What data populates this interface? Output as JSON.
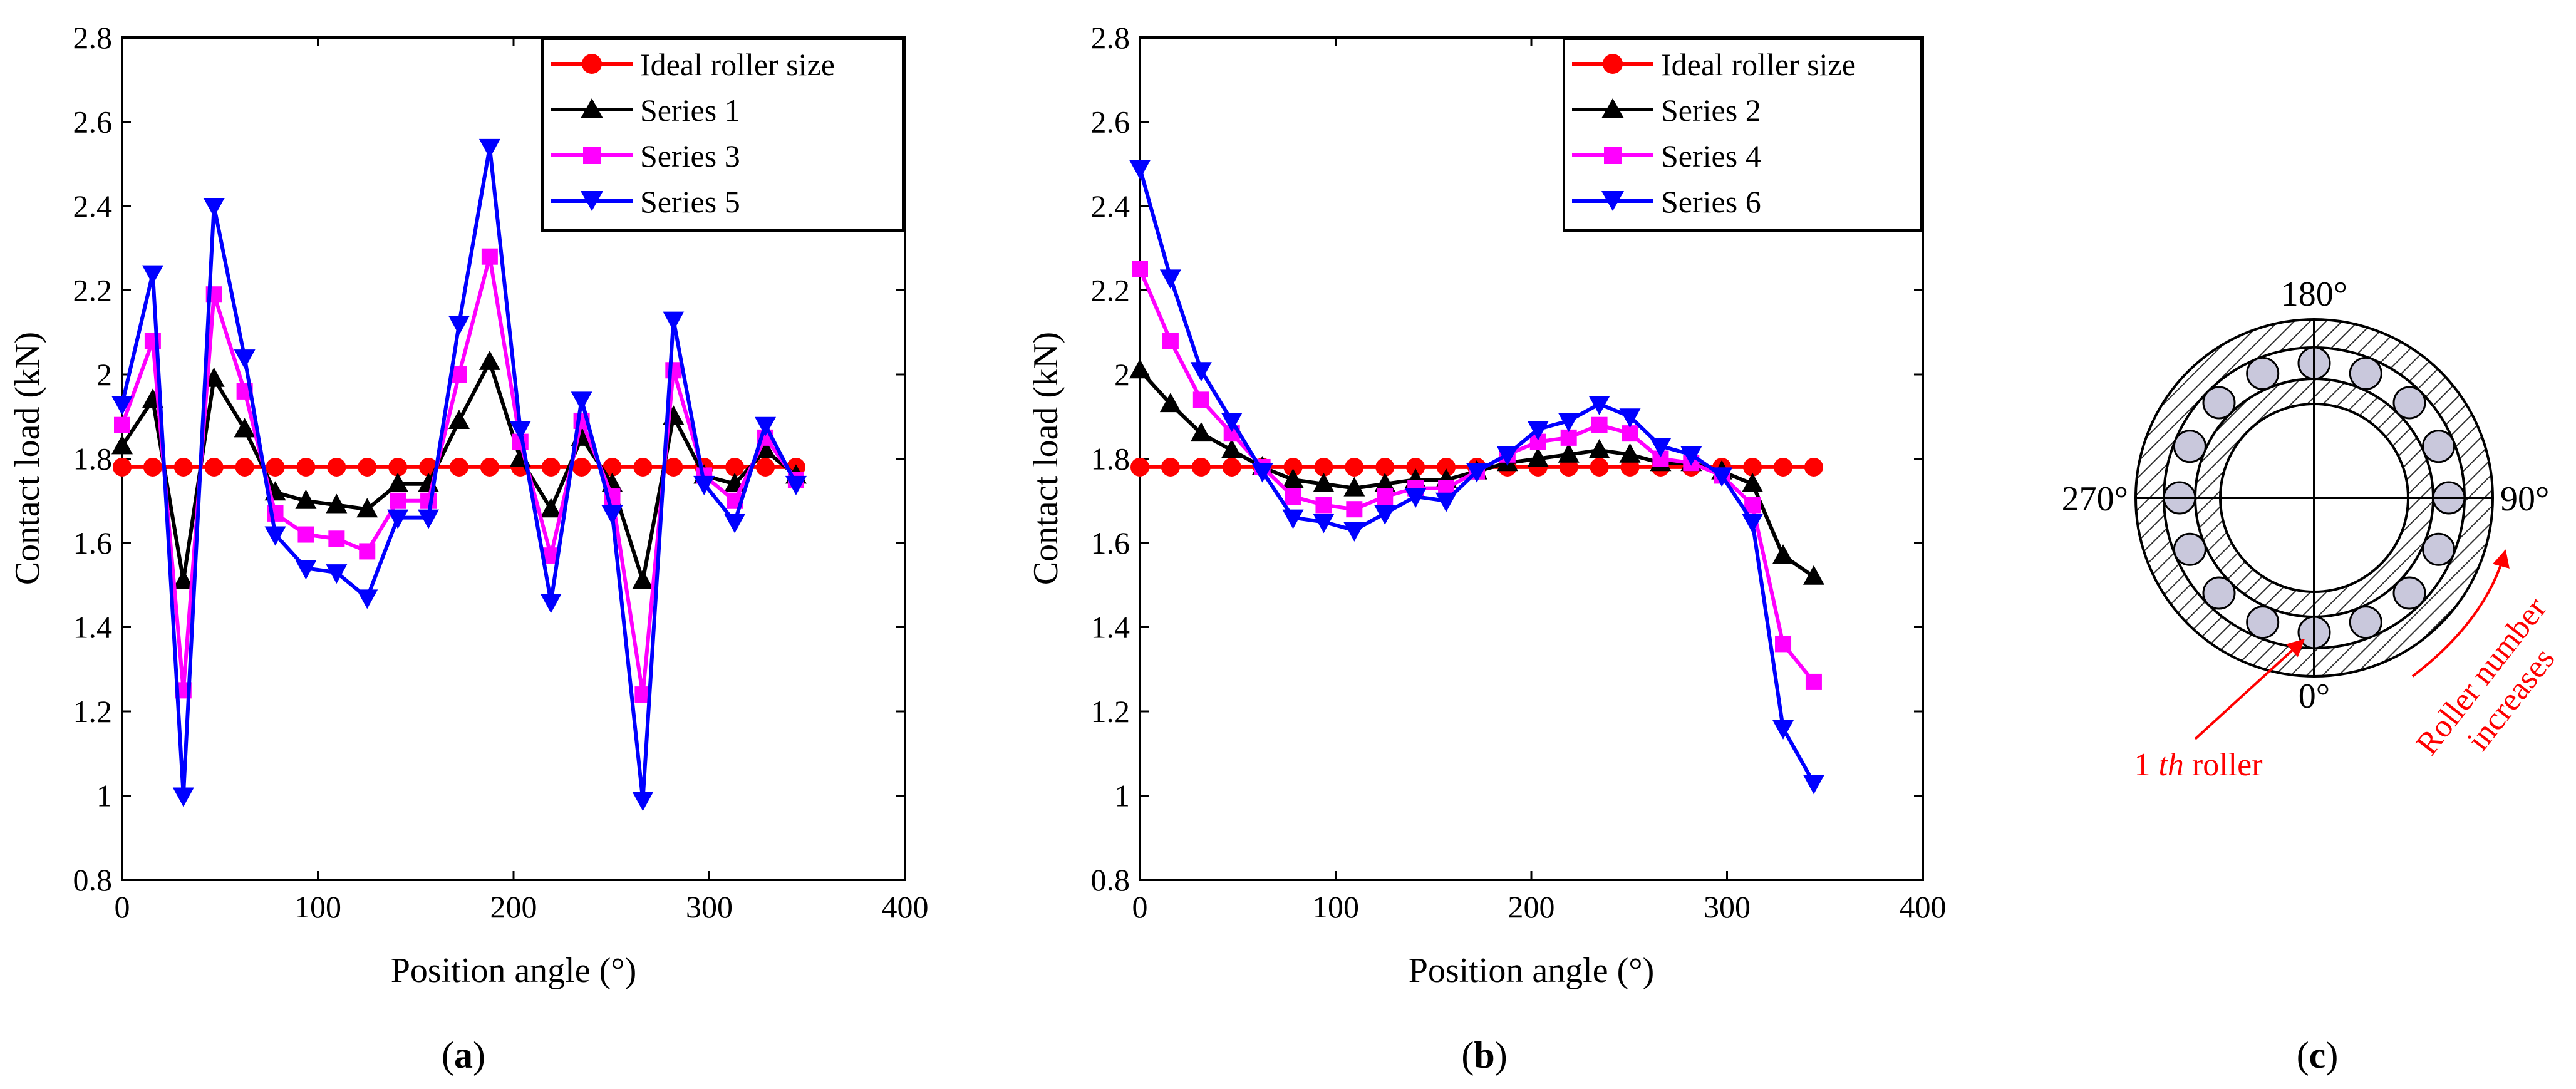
{
  "colors": {
    "ideal": "#ff0000",
    "black_series": "#000000",
    "magenta_series": "#ff00ff",
    "blue_series": "#0000ff",
    "roller_fill": "#c9c8dc",
    "annotation": "#ff0000"
  },
  "chart_data": [
    {
      "type": "line",
      "panel_label": "a",
      "xlabel": "Position angle (°)",
      "ylabel": "Contact load (kN)",
      "xlim": [
        0,
        400
      ],
      "ylim": [
        0.8,
        2.8
      ],
      "xticks": [
        0,
        100,
        200,
        300,
        400
      ],
      "xtick_labels": [
        "0",
        "100",
        "200",
        "300",
        "400"
      ],
      "yticks": [
        0.8,
        1.0,
        1.2,
        1.4,
        1.6,
        1.8,
        2.0,
        2.2,
        2.4,
        2.6,
        2.8
      ],
      "ytick_labels": [
        "0.8",
        "1",
        "1.2",
        "1.4",
        "1.6",
        "1.8",
        "2",
        "2.2",
        "2.4",
        "2.6",
        "2.8"
      ],
      "grid": false,
      "legend_position": "top-right",
      "x": [
        0,
        15.65,
        31.3,
        46.95,
        62.6,
        78.25,
        93.9,
        109.55,
        125.2,
        140.85,
        156.5,
        172.15,
        187.8,
        203.45,
        219.1,
        234.75,
        250.4,
        266.05,
        281.7,
        297.35,
        313,
        328.65,
        344.3
      ],
      "series": [
        {
          "name": "Ideal roller size",
          "color_key": "ideal",
          "marker": "circle",
          "values": [
            1.78,
            1.78,
            1.78,
            1.78,
            1.78,
            1.78,
            1.78,
            1.78,
            1.78,
            1.78,
            1.78,
            1.78,
            1.78,
            1.78,
            1.78,
            1.78,
            1.78,
            1.78,
            1.78,
            1.78,
            1.78,
            1.78,
            1.78
          ]
        },
        {
          "name": "Series 1",
          "color_key": "black_series",
          "marker": "triangle-up",
          "values": [
            1.83,
            1.94,
            1.51,
            1.99,
            1.87,
            1.72,
            1.7,
            1.69,
            1.68,
            1.74,
            1.74,
            1.89,
            2.03,
            1.8,
            1.68,
            1.85,
            1.74,
            1.51,
            1.9,
            1.76,
            1.74,
            1.82,
            1.76
          ]
        },
        {
          "name": "Series 3",
          "color_key": "magenta_series",
          "marker": "square",
          "values": [
            1.88,
            2.08,
            1.25,
            2.19,
            1.96,
            1.67,
            1.62,
            1.61,
            1.58,
            1.7,
            1.7,
            2.0,
            2.28,
            1.84,
            1.57,
            1.89,
            1.71,
            1.24,
            2.01,
            1.76,
            1.7,
            1.85,
            1.75
          ]
        },
        {
          "name": "Series 5",
          "color_key": "blue_series",
          "marker": "triangle-down",
          "values": [
            1.93,
            2.24,
            1.0,
            2.4,
            2.04,
            1.62,
            1.54,
            1.53,
            1.47,
            1.66,
            1.66,
            2.12,
            2.54,
            1.87,
            1.46,
            1.94,
            1.67,
            0.99,
            2.13,
            1.74,
            1.65,
            1.88,
            1.74
          ]
        }
      ]
    },
    {
      "type": "line",
      "panel_label": "b",
      "xlabel": "Position angle (°)",
      "ylabel": "Contact load (kN)",
      "xlim": [
        0,
        400
      ],
      "ylim": [
        0.8,
        2.8
      ],
      "xticks": [
        0,
        100,
        200,
        300,
        400
      ],
      "xtick_labels": [
        "0",
        "100",
        "200",
        "300",
        "400"
      ],
      "yticks": [
        0.8,
        1.0,
        1.2,
        1.4,
        1.6,
        1.8,
        2.0,
        2.2,
        2.4,
        2.6,
        2.8
      ],
      "ytick_labels": [
        "0.8",
        "1",
        "1.2",
        "1.4",
        "1.6",
        "1.8",
        "2",
        "2.2",
        "2.4",
        "2.6",
        "2.8"
      ],
      "grid": false,
      "legend_position": "top-right",
      "x": [
        0,
        15.65,
        31.3,
        46.95,
        62.6,
        78.25,
        93.9,
        109.55,
        125.2,
        140.85,
        156.5,
        172.15,
        187.8,
        203.45,
        219.1,
        234.75,
        250.4,
        266.05,
        281.7,
        297.35,
        313,
        328.65,
        344.3
      ],
      "series": [
        {
          "name": "Ideal roller size",
          "color_key": "ideal",
          "marker": "circle",
          "values": [
            1.78,
            1.78,
            1.78,
            1.78,
            1.78,
            1.78,
            1.78,
            1.78,
            1.78,
            1.78,
            1.78,
            1.78,
            1.78,
            1.78,
            1.78,
            1.78,
            1.78,
            1.78,
            1.78,
            1.78,
            1.78,
            1.78,
            1.78
          ]
        },
        {
          "name": "Series 2",
          "color_key": "black_series",
          "marker": "triangle-up",
          "values": [
            2.01,
            1.93,
            1.86,
            1.82,
            1.78,
            1.75,
            1.74,
            1.73,
            1.74,
            1.75,
            1.75,
            1.77,
            1.79,
            1.8,
            1.81,
            1.82,
            1.81,
            1.79,
            1.79,
            1.77,
            1.74,
            1.57,
            1.52
          ]
        },
        {
          "name": "Series 4",
          "color_key": "magenta_series",
          "marker": "square",
          "values": [
            2.25,
            2.08,
            1.94,
            1.86,
            1.78,
            1.71,
            1.69,
            1.68,
            1.71,
            1.73,
            1.73,
            1.77,
            1.81,
            1.84,
            1.85,
            1.88,
            1.86,
            1.8,
            1.79,
            1.76,
            1.69,
            1.36,
            1.27
          ]
        },
        {
          "name": "Series 6",
          "color_key": "blue_series",
          "marker": "triangle-down",
          "values": [
            2.49,
            2.23,
            2.01,
            1.89,
            1.77,
            1.66,
            1.65,
            1.63,
            1.67,
            1.71,
            1.7,
            1.77,
            1.81,
            1.87,
            1.89,
            1.93,
            1.9,
            1.83,
            1.81,
            1.76,
            1.65,
            1.16,
            1.03
          ]
        }
      ]
    }
  ],
  "diagram": {
    "panel_label": "c",
    "angle_labels": {
      "top": "180°",
      "right": "90°",
      "bottom": "0°",
      "left": "270°"
    },
    "roller_count": 16,
    "first_roller_label": "1 th roller",
    "first_roller_label_prefix": "1 ",
    "first_roller_label_italic": "th",
    "first_roller_label_suffix": " roller",
    "increase_label_line1": "Roller number",
    "increase_label_line2": "increases"
  }
}
